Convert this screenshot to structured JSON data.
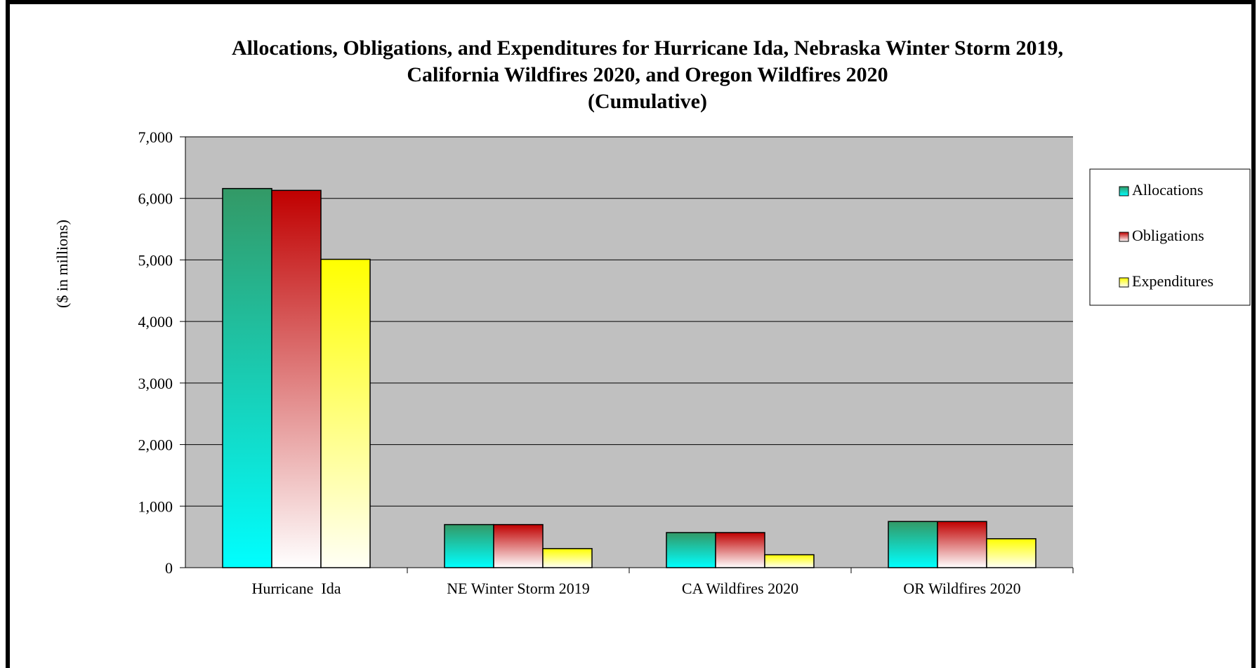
{
  "chart_data": {
    "type": "bar",
    "title_lines": [
      "Allocations, Obligations, and Expenditures for Hurricane Ida, Nebraska Winter Storm 2019,",
      "California Wildfires 2020, and Oregon Wildfires 2020",
      "(Cumulative)"
    ],
    "ylabel": "($ in millions)",
    "xlabel": "",
    "ylim": [
      0,
      7000
    ],
    "yticks": [
      0,
      1000,
      2000,
      3000,
      4000,
      5000,
      6000,
      7000
    ],
    "ytick_labels": [
      "0",
      "1,000",
      "2,000",
      "3,000",
      "4,000",
      "5,000",
      "6,000",
      "7,000"
    ],
    "categories": [
      "Hurricane  Ida",
      "NE Winter Storm 2019",
      "CA Wildfires 2020",
      "OR Wildfires 2020"
    ],
    "series": [
      {
        "name": "Allocations",
        "values": [
          6160,
          700,
          570,
          750
        ]
      },
      {
        "name": "Obligations",
        "values": [
          6130,
          700,
          570,
          750
        ]
      },
      {
        "name": "Expenditures",
        "values": [
          5010,
          310,
          210,
          470
        ]
      }
    ],
    "grid": true,
    "legend_position": "right",
    "colors": {
      "plot_background": "#c0c0c0",
      "Allocations": {
        "top": "#339966",
        "bottom": "#00ffff"
      },
      "Obligations": {
        "top": "#c00000",
        "bottom": "#ffffff"
      },
      "Expenditures": {
        "top": "#ffff00",
        "bottom": "#fffff5"
      }
    }
  }
}
